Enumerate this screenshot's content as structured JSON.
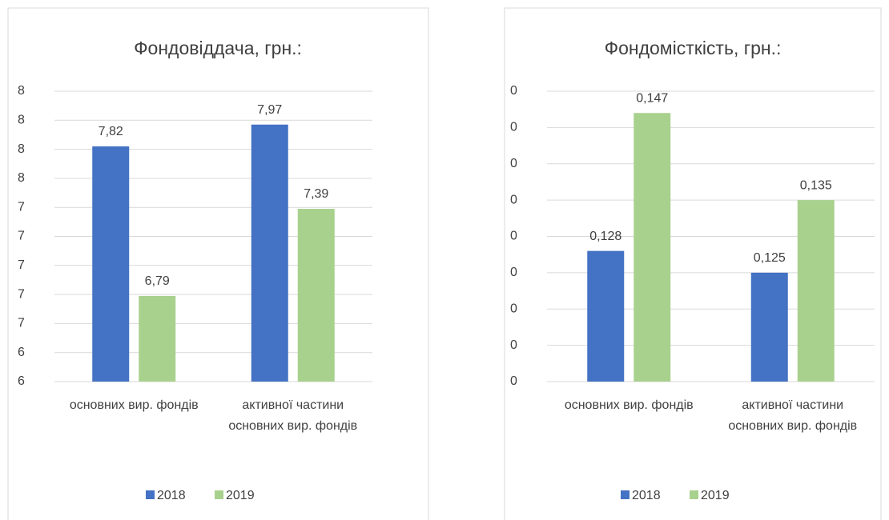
{
  "chart_data": [
    {
      "type": "bar",
      "title": "Фондовіддача, грн.:",
      "categories": [
        "основних вир. фондів",
        "активної частини основних вир. фондів"
      ],
      "series": [
        {
          "name": "2018",
          "color": "#4472c4",
          "values": [
            7.82,
            7.97
          ],
          "value_labels": [
            "7,82",
            "7,97"
          ]
        },
        {
          "name": "2019",
          "color": "#a9d18e",
          "values": [
            6.79,
            7.39
          ],
          "value_labels": [
            "6,79",
            "7,39"
          ]
        }
      ],
      "ylim": [
        6.2,
        8.2
      ],
      "yticks": [
        {
          "value": 6.2,
          "label": "6"
        },
        {
          "value": 6.4,
          "label": "6"
        },
        {
          "value": 6.6,
          "label": "7"
        },
        {
          "value": 6.8,
          "label": "7"
        },
        {
          "value": 7.0,
          "label": "7"
        },
        {
          "value": 7.2,
          "label": "7"
        },
        {
          "value": 7.4,
          "label": "7"
        },
        {
          "value": 7.6,
          "label": "8"
        },
        {
          "value": 7.8,
          "label": "8"
        },
        {
          "value": 8.0,
          "label": "8"
        },
        {
          "value": 8.2,
          "label": "8"
        }
      ],
      "grid": true,
      "legend": "bottom"
    },
    {
      "type": "bar",
      "title": "Фондомісткість, грн.:",
      "categories": [
        "основних вир. фондів",
        "активної частини основних вир. фондів"
      ],
      "series": [
        {
          "name": "2018",
          "color": "#4472c4",
          "values": [
            0.128,
            0.125
          ],
          "value_labels": [
            "0,128",
            "0,125"
          ]
        },
        {
          "name": "2019",
          "color": "#a9d18e",
          "values": [
            0.147,
            0.135
          ],
          "value_labels": [
            "0,147",
            "0,135"
          ]
        }
      ],
      "ylim": [
        0.11,
        0.15
      ],
      "yticks": [
        {
          "value": 0.11,
          "label": "0"
        },
        {
          "value": 0.115,
          "label": "0"
        },
        {
          "value": 0.12,
          "label": "0"
        },
        {
          "value": 0.125,
          "label": "0"
        },
        {
          "value": 0.13,
          "label": "0"
        },
        {
          "value": 0.135,
          "label": "0"
        },
        {
          "value": 0.14,
          "label": "0"
        },
        {
          "value": 0.145,
          "label": "0"
        },
        {
          "value": 0.15,
          "label": "0"
        }
      ],
      "grid": true,
      "legend": "bottom"
    }
  ]
}
